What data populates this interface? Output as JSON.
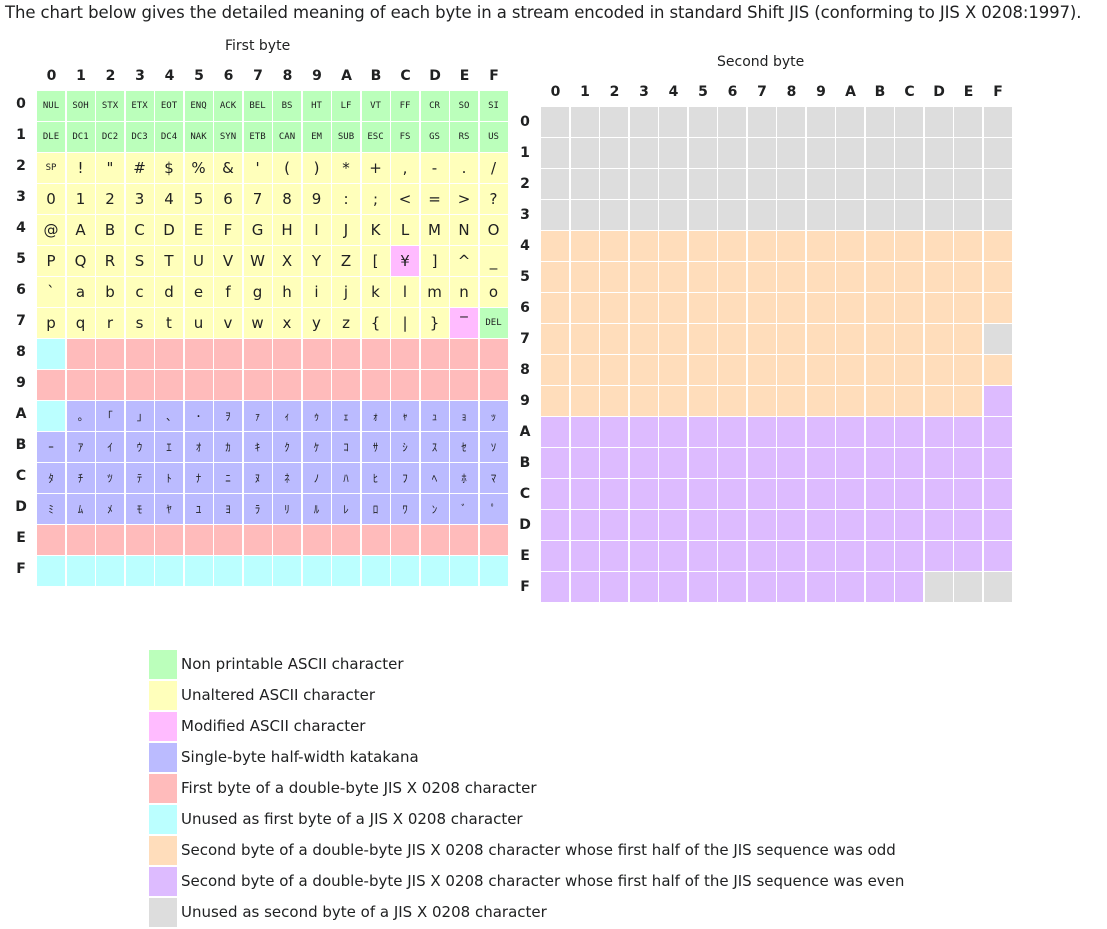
{
  "intro": "The chart below gives the detailed meaning of each byte in a stream encoded in standard Shift JIS (conforming to JIS X 0208:1997).",
  "first_table": {
    "caption": "First byte",
    "col_headers": [
      "0",
      "1",
      "2",
      "3",
      "4",
      "5",
      "6",
      "7",
      "8",
      "9",
      "A",
      "B",
      "C",
      "D",
      "E",
      "F"
    ],
    "row_headers": [
      "0",
      "1",
      "2",
      "3",
      "4",
      "5",
      "6",
      "7",
      "8",
      "9",
      "A",
      "B",
      "C",
      "D",
      "E",
      "F"
    ],
    "cells": [
      [
        "NUL",
        "SOH",
        "STX",
        "ETX",
        "EOT",
        "ENQ",
        "ACK",
        "BEL",
        "BS",
        "HT",
        "LF",
        "VT",
        "FF",
        "CR",
        "SO",
        "SI"
      ],
      [
        "DLE",
        "DC1",
        "DC2",
        "DC3",
        "DC4",
        "NAK",
        "SYN",
        "ETB",
        "CAN",
        "EM",
        "SUB",
        "ESC",
        "FS",
        "GS",
        "RS",
        "US"
      ],
      [
        "SP",
        "!",
        "\"",
        "#",
        "$",
        "%",
        "&",
        "'",
        "(",
        ")",
        "*",
        "+",
        ",",
        "-",
        ".",
        "/"
      ],
      [
        "0",
        "1",
        "2",
        "3",
        "4",
        "5",
        "6",
        "7",
        "8",
        "9",
        ":",
        ";",
        "<",
        "=",
        ">",
        "?"
      ],
      [
        "@",
        "A",
        "B",
        "C",
        "D",
        "E",
        "F",
        "G",
        "H",
        "I",
        "J",
        "K",
        "L",
        "M",
        "N",
        "O"
      ],
      [
        "P",
        "Q",
        "R",
        "S",
        "T",
        "U",
        "V",
        "W",
        "X",
        "Y",
        "Z",
        "[",
        "¥",
        "]",
        "^",
        "_"
      ],
      [
        "`",
        "a",
        "b",
        "c",
        "d",
        "e",
        "f",
        "g",
        "h",
        "i",
        "j",
        "k",
        "l",
        "m",
        "n",
        "o"
      ],
      [
        "p",
        "q",
        "r",
        "s",
        "t",
        "u",
        "v",
        "w",
        "x",
        "y",
        "z",
        "{",
        "|",
        "}",
        "‾",
        "DEL"
      ],
      [
        "",
        "",
        "",
        "",
        "",
        "",
        "",
        "",
        "",
        "",
        "",
        "",
        "",
        "",
        "",
        ""
      ],
      [
        "",
        "",
        "",
        "",
        "",
        "",
        "",
        "",
        "",
        "",
        "",
        "",
        "",
        "",
        "",
        ""
      ],
      [
        "",
        "｡",
        "｢",
        "｣",
        "､",
        "･",
        "ｦ",
        "ｧ",
        "ｨ",
        "ｩ",
        "ｪ",
        "ｫ",
        "ｬ",
        "ｭ",
        "ｮ",
        "ｯ"
      ],
      [
        "ｰ",
        "ｱ",
        "ｲ",
        "ｳ",
        "ｴ",
        "ｵ",
        "ｶ",
        "ｷ",
        "ｸ",
        "ｹ",
        "ｺ",
        "ｻ",
        "ｼ",
        "ｽ",
        "ｾ",
        "ｿ"
      ],
      [
        "ﾀ",
        "ﾁ",
        "ﾂ",
        "ﾃ",
        "ﾄ",
        "ﾅ",
        "ﾆ",
        "ﾇ",
        "ﾈ",
        "ﾉ",
        "ﾊ",
        "ﾋ",
        "ﾌ",
        "ﾍ",
        "ﾎ",
        "ﾏ"
      ],
      [
        "ﾐ",
        "ﾑ",
        "ﾒ",
        "ﾓ",
        "ﾔ",
        "ﾕ",
        "ﾖ",
        "ﾗ",
        "ﾘ",
        "ﾙ",
        "ﾚ",
        "ﾛ",
        "ﾜ",
        "ﾝ",
        "ﾞ",
        "ﾟ"
      ],
      [
        "",
        "",
        "",
        "",
        "",
        "",
        "",
        "",
        "",
        "",
        "",
        "",
        "",
        "",
        "",
        ""
      ],
      [
        "",
        "",
        "",
        "",
        "",
        "",
        "",
        "",
        "",
        "",
        "",
        "",
        "",
        "",
        "",
        ""
      ]
    ],
    "categories": [
      [
        "np",
        "np",
        "np",
        "np",
        "np",
        "np",
        "np",
        "np",
        "np",
        "np",
        "np",
        "np",
        "np",
        "np",
        "np",
        "np"
      ],
      [
        "np",
        "np",
        "np",
        "np",
        "np",
        "np",
        "np",
        "np",
        "np",
        "np",
        "np",
        "np",
        "np",
        "np",
        "np",
        "np"
      ],
      [
        "ua",
        "ua",
        "ua",
        "ua",
        "ua",
        "ua",
        "ua",
        "ua",
        "ua",
        "ua",
        "ua",
        "ua",
        "ua",
        "ua",
        "ua",
        "ua"
      ],
      [
        "ua",
        "ua",
        "ua",
        "ua",
        "ua",
        "ua",
        "ua",
        "ua",
        "ua",
        "ua",
        "ua",
        "ua",
        "ua",
        "ua",
        "ua",
        "ua"
      ],
      [
        "ua",
        "ua",
        "ua",
        "ua",
        "ua",
        "ua",
        "ua",
        "ua",
        "ua",
        "ua",
        "ua",
        "ua",
        "ua",
        "ua",
        "ua",
        "ua"
      ],
      [
        "ua",
        "ua",
        "ua",
        "ua",
        "ua",
        "ua",
        "ua",
        "ua",
        "ua",
        "ua",
        "ua",
        "ua",
        "mod",
        "ua",
        "ua",
        "ua"
      ],
      [
        "ua",
        "ua",
        "ua",
        "ua",
        "ua",
        "ua",
        "ua",
        "ua",
        "ua",
        "ua",
        "ua",
        "ua",
        "ua",
        "ua",
        "ua",
        "ua"
      ],
      [
        "ua",
        "ua",
        "ua",
        "ua",
        "ua",
        "ua",
        "ua",
        "ua",
        "ua",
        "ua",
        "ua",
        "ua",
        "ua",
        "ua",
        "mod",
        "np"
      ],
      [
        "u1",
        "fb",
        "fb",
        "fb",
        "fb",
        "fb",
        "fb",
        "fb",
        "fb",
        "fb",
        "fb",
        "fb",
        "fb",
        "fb",
        "fb",
        "fb"
      ],
      [
        "fb",
        "fb",
        "fb",
        "fb",
        "fb",
        "fb",
        "fb",
        "fb",
        "fb",
        "fb",
        "fb",
        "fb",
        "fb",
        "fb",
        "fb",
        "fb"
      ],
      [
        "u1",
        "kt",
        "kt",
        "kt",
        "kt",
        "kt",
        "kt",
        "kt",
        "kt",
        "kt",
        "kt",
        "kt",
        "kt",
        "kt",
        "kt",
        "kt"
      ],
      [
        "kt",
        "kt",
        "kt",
        "kt",
        "kt",
        "kt",
        "kt",
        "kt",
        "kt",
        "kt",
        "kt",
        "kt",
        "kt",
        "kt",
        "kt",
        "kt"
      ],
      [
        "kt",
        "kt",
        "kt",
        "kt",
        "kt",
        "kt",
        "kt",
        "kt",
        "kt",
        "kt",
        "kt",
        "kt",
        "kt",
        "kt",
        "kt",
        "kt"
      ],
      [
        "kt",
        "kt",
        "kt",
        "kt",
        "kt",
        "kt",
        "kt",
        "kt",
        "kt",
        "kt",
        "kt",
        "kt",
        "kt",
        "kt",
        "kt",
        "kt"
      ],
      [
        "fb",
        "fb",
        "fb",
        "fb",
        "fb",
        "fb",
        "fb",
        "fb",
        "fb",
        "fb",
        "fb",
        "fb",
        "fb",
        "fb",
        "fb",
        "fb"
      ],
      [
        "u1",
        "u1",
        "u1",
        "u1",
        "u1",
        "u1",
        "u1",
        "u1",
        "u1",
        "u1",
        "u1",
        "u1",
        "u1",
        "u1",
        "u1",
        "u1"
      ]
    ]
  },
  "second_table": {
    "caption": "Second byte",
    "col_headers": [
      "0",
      "1",
      "2",
      "3",
      "4",
      "5",
      "6",
      "7",
      "8",
      "9",
      "A",
      "B",
      "C",
      "D",
      "E",
      "F"
    ],
    "row_headers": [
      "0",
      "1",
      "2",
      "3",
      "4",
      "5",
      "6",
      "7",
      "8",
      "9",
      "A",
      "B",
      "C",
      "D",
      "E",
      "F"
    ],
    "categories": [
      [
        "u2",
        "u2",
        "u2",
        "u2",
        "u2",
        "u2",
        "u2",
        "u2",
        "u2",
        "u2",
        "u2",
        "u2",
        "u2",
        "u2",
        "u2",
        "u2"
      ],
      [
        "u2",
        "u2",
        "u2",
        "u2",
        "u2",
        "u2",
        "u2",
        "u2",
        "u2",
        "u2",
        "u2",
        "u2",
        "u2",
        "u2",
        "u2",
        "u2"
      ],
      [
        "u2",
        "u2",
        "u2",
        "u2",
        "u2",
        "u2",
        "u2",
        "u2",
        "u2",
        "u2",
        "u2",
        "u2",
        "u2",
        "u2",
        "u2",
        "u2"
      ],
      [
        "u2",
        "u2",
        "u2",
        "u2",
        "u2",
        "u2",
        "u2",
        "u2",
        "u2",
        "u2",
        "u2",
        "u2",
        "u2",
        "u2",
        "u2",
        "u2"
      ],
      [
        "odd",
        "odd",
        "odd",
        "odd",
        "odd",
        "odd",
        "odd",
        "odd",
        "odd",
        "odd",
        "odd",
        "odd",
        "odd",
        "odd",
        "odd",
        "odd"
      ],
      [
        "odd",
        "odd",
        "odd",
        "odd",
        "odd",
        "odd",
        "odd",
        "odd",
        "odd",
        "odd",
        "odd",
        "odd",
        "odd",
        "odd",
        "odd",
        "odd"
      ],
      [
        "odd",
        "odd",
        "odd",
        "odd",
        "odd",
        "odd",
        "odd",
        "odd",
        "odd",
        "odd",
        "odd",
        "odd",
        "odd",
        "odd",
        "odd",
        "odd"
      ],
      [
        "odd",
        "odd",
        "odd",
        "odd",
        "odd",
        "odd",
        "odd",
        "odd",
        "odd",
        "odd",
        "odd",
        "odd",
        "odd",
        "odd",
        "odd",
        "u2"
      ],
      [
        "odd",
        "odd",
        "odd",
        "odd",
        "odd",
        "odd",
        "odd",
        "odd",
        "odd",
        "odd",
        "odd",
        "odd",
        "odd",
        "odd",
        "odd",
        "odd"
      ],
      [
        "odd",
        "odd",
        "odd",
        "odd",
        "odd",
        "odd",
        "odd",
        "odd",
        "odd",
        "odd",
        "odd",
        "odd",
        "odd",
        "odd",
        "odd",
        "even"
      ],
      [
        "even",
        "even",
        "even",
        "even",
        "even",
        "even",
        "even",
        "even",
        "even",
        "even",
        "even",
        "even",
        "even",
        "even",
        "even",
        "even"
      ],
      [
        "even",
        "even",
        "even",
        "even",
        "even",
        "even",
        "even",
        "even",
        "even",
        "even",
        "even",
        "even",
        "even",
        "even",
        "even",
        "even"
      ],
      [
        "even",
        "even",
        "even",
        "even",
        "even",
        "even",
        "even",
        "even",
        "even",
        "even",
        "even",
        "even",
        "even",
        "even",
        "even",
        "even"
      ],
      [
        "even",
        "even",
        "even",
        "even",
        "even",
        "even",
        "even",
        "even",
        "even",
        "even",
        "even",
        "even",
        "even",
        "even",
        "even",
        "even"
      ],
      [
        "even",
        "even",
        "even",
        "even",
        "even",
        "even",
        "even",
        "even",
        "even",
        "even",
        "even",
        "even",
        "even",
        "even",
        "even",
        "even"
      ],
      [
        "even",
        "even",
        "even",
        "even",
        "even",
        "even",
        "even",
        "even",
        "even",
        "even",
        "even",
        "even",
        "even",
        "u2",
        "u2",
        "u2"
      ]
    ]
  },
  "legend": [
    {
      "key": "np",
      "color": "#bbffbb",
      "label": "Non printable ASCII character"
    },
    {
      "key": "ua",
      "color": "#ffffbb",
      "label": "Unaltered ASCII character"
    },
    {
      "key": "mod",
      "color": "#ffbbff",
      "label": "Modified ASCII character"
    },
    {
      "key": "kt",
      "color": "#bbbbff",
      "label": "Single-byte half-width katakana"
    },
    {
      "key": "fb",
      "color": "#ffbbbb",
      "label": "First byte of a double-byte JIS X 0208 character"
    },
    {
      "key": "u1",
      "color": "#bbffff",
      "label": "Unused as first byte of a JIS X 0208 character"
    },
    {
      "key": "odd",
      "color": "#ffddbb",
      "label": "Second byte of a double-byte JIS X 0208 character whose first half of the JIS sequence was odd"
    },
    {
      "key": "even",
      "color": "#ddbbff",
      "label": "Second byte of a double-byte JIS X 0208 character whose first half of the JIS sequence was even"
    },
    {
      "key": "u2",
      "color": "#dddddd",
      "label": "Unused as second byte of a JIS X 0208 character"
    }
  ]
}
